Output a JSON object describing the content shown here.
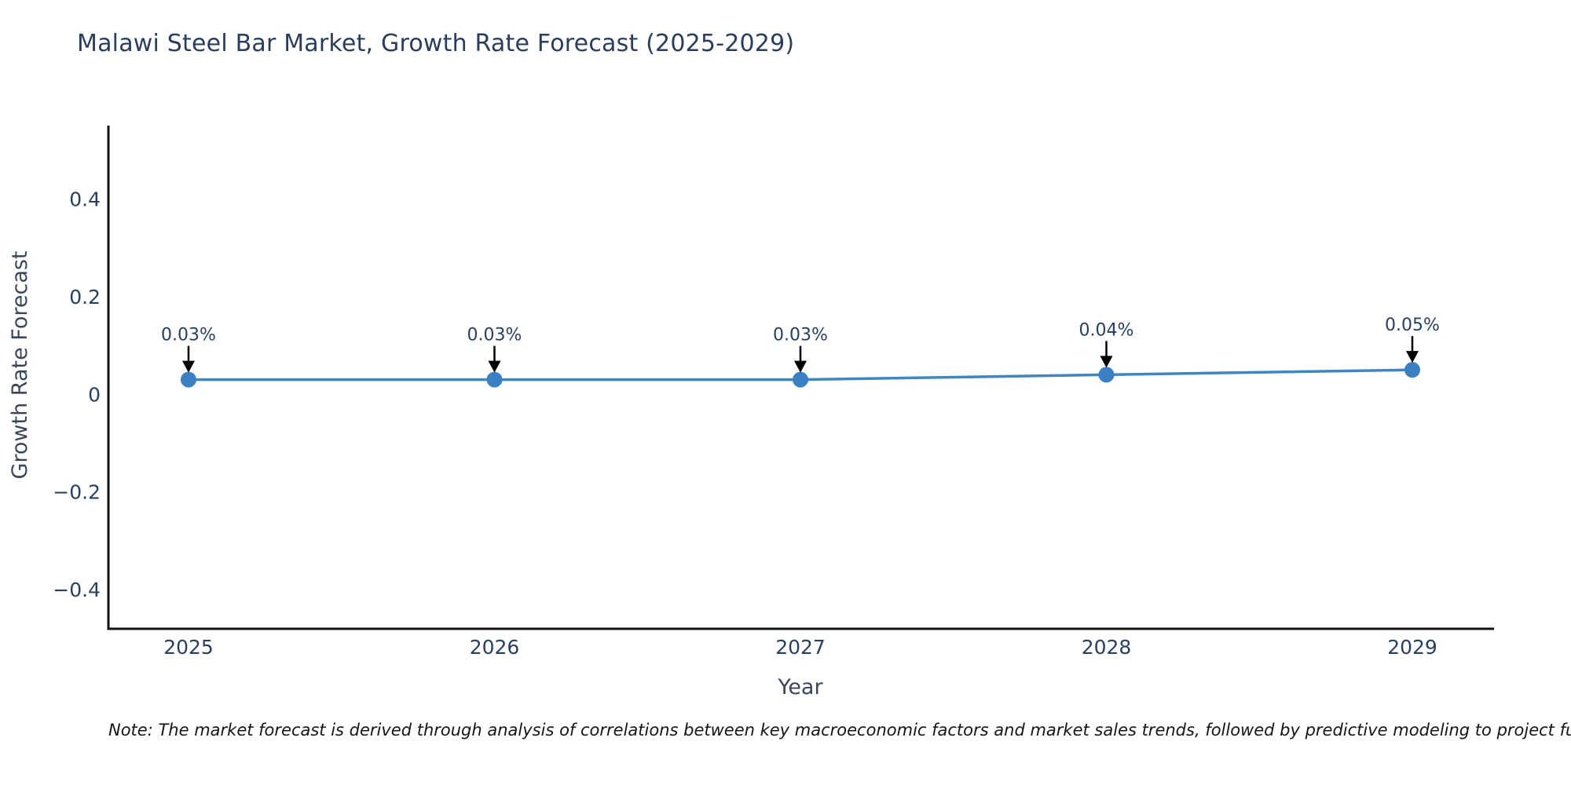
{
  "chart_data": {
    "type": "line",
    "title": "Malawi Steel Bar Market, Growth Rate Forecast (2025-2029)",
    "xlabel": "Year",
    "ylabel": "Growth Rate Forecast",
    "categories": [
      "2025",
      "2026",
      "2027",
      "2028",
      "2029"
    ],
    "values": [
      0.03,
      0.03,
      0.03,
      0.04,
      0.05
    ],
    "annotations": [
      "0.03%",
      "0.03%",
      "0.03%",
      "0.04%",
      "0.05%"
    ],
    "yticks": [
      {
        "value": 0.4,
        "label": "0.4"
      },
      {
        "value": 0.2,
        "label": "0.2"
      },
      {
        "value": 0,
        "label": "0"
      },
      {
        "value": -0.2,
        "label": "−0.2"
      },
      {
        "value": -0.4,
        "label": "−0.4"
      }
    ],
    "ylim": [
      -0.48,
      0.55
    ],
    "grid": false,
    "legend_position": "none",
    "line_color": "#4186c0",
    "marker_color": "#3b80c2",
    "axis_color": "#111111",
    "text_color": "#2a3f5f",
    "annotation_arrow_color": "#000000"
  },
  "note": "Note: The market forecast is derived through analysis of correlations between key macroeconomic factors and market sales trends, followed by predictive modeling to project future sales."
}
